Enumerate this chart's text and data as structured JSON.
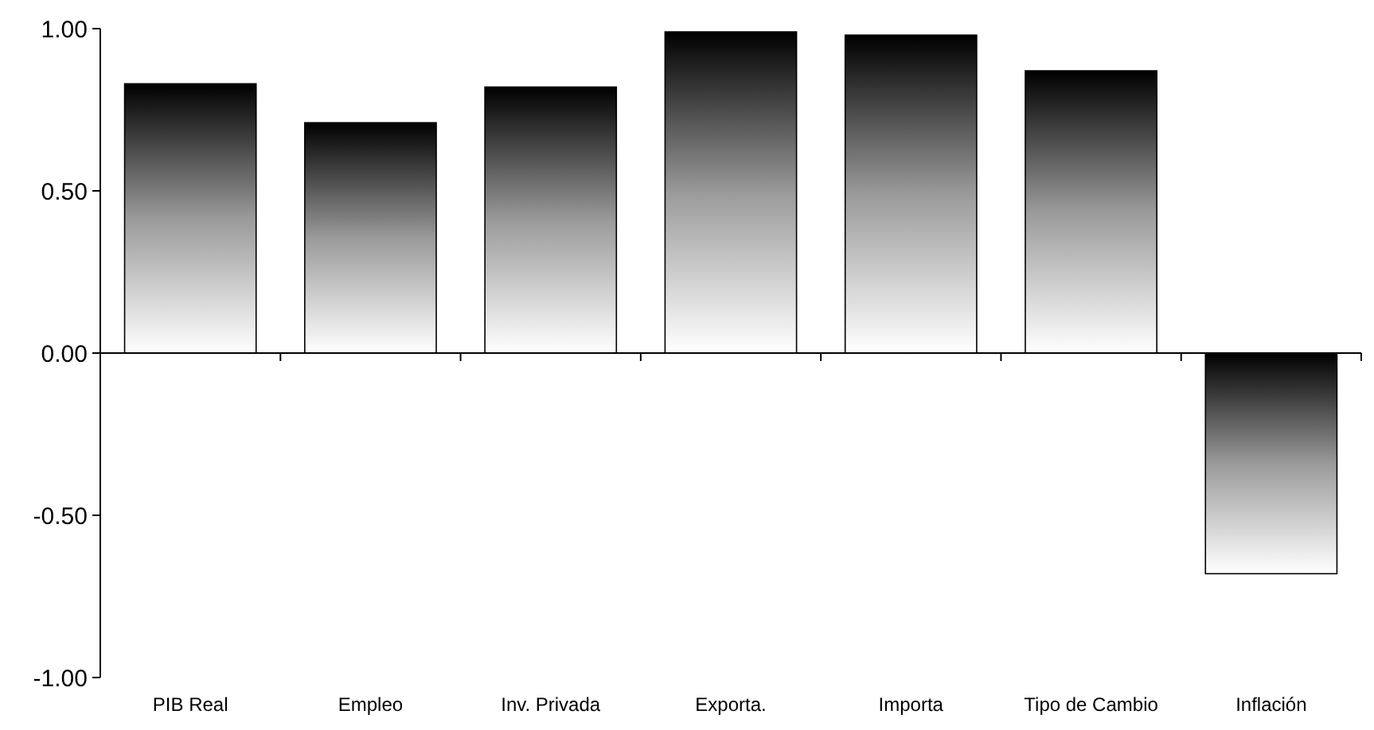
{
  "chart_data": {
    "type": "bar",
    "categories": [
      "PIB Real",
      "Empleo",
      "Inv. Privada",
      "Exporta.",
      "Importa",
      "Tipo de Cambio",
      "Inflación"
    ],
    "values": [
      0.83,
      0.71,
      0.82,
      0.99,
      0.98,
      0.87,
      -0.68
    ],
    "color": "#000000",
    "ylim": [
      -1,
      1
    ],
    "yticks": [
      {
        "value": -1,
        "label": "-1.00"
      },
      {
        "value": -0.5,
        "label": "-0.50"
      },
      {
        "value": 0,
        "label": "0.00"
      },
      {
        "value": 0.5,
        "label": "0.50"
      },
      {
        "value": 1,
        "label": "1.00"
      }
    ],
    "data_labels": false
  }
}
